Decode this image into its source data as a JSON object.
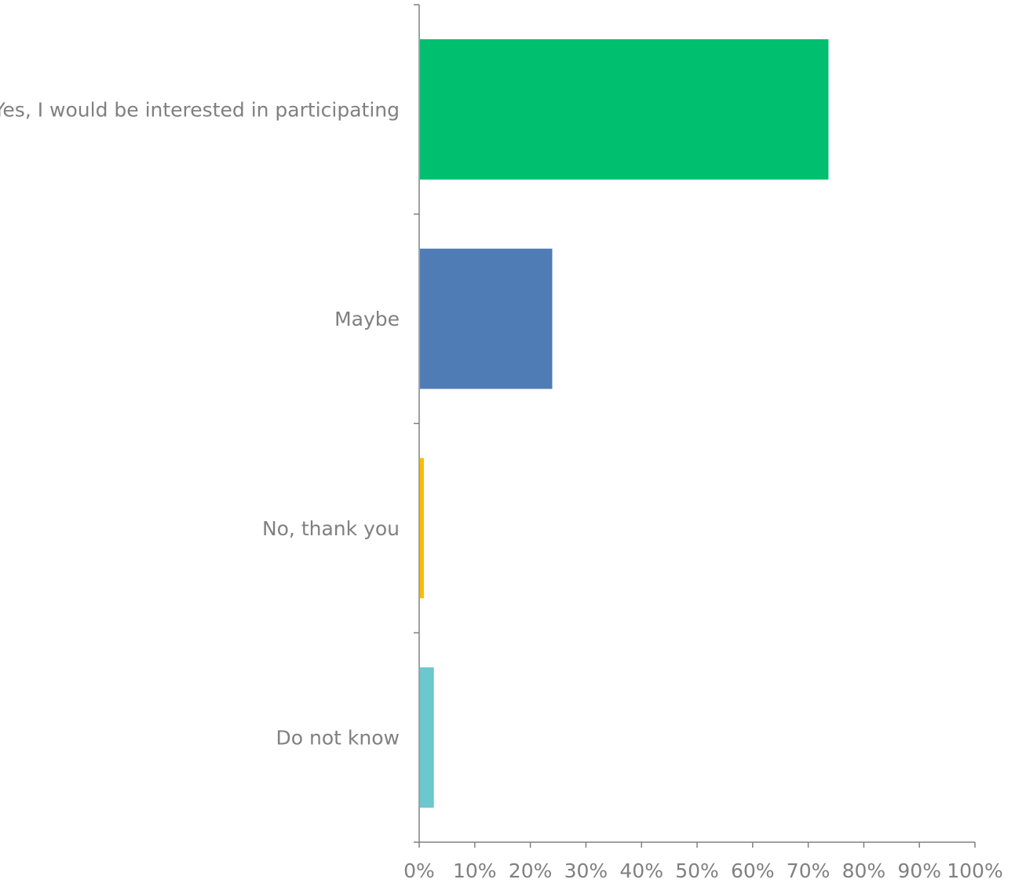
{
  "chart_data": {
    "type": "bar",
    "orientation": "horizontal",
    "categories": [
      "Yes, I would be interested in participating",
      "Maybe",
      "No, thank you",
      "Do not know"
    ],
    "values": [
      73.5,
      23.8,
      0.7,
      2.5
    ],
    "colors": [
      "#00BF6F",
      "#507CB6",
      "#F9BE00",
      "#6BC8CD"
    ],
    "xlim": [
      0,
      100
    ],
    "xticks": [
      0,
      10,
      20,
      30,
      40,
      50,
      60,
      70,
      80,
      90,
      100
    ],
    "xtick_labels": [
      "0%",
      "10%",
      "20%",
      "30%",
      "40%",
      "50%",
      "60%",
      "70%",
      "80%",
      "90%",
      "100%"
    ],
    "grid": false,
    "axis_color": "#808080",
    "text_color": "#808080"
  }
}
